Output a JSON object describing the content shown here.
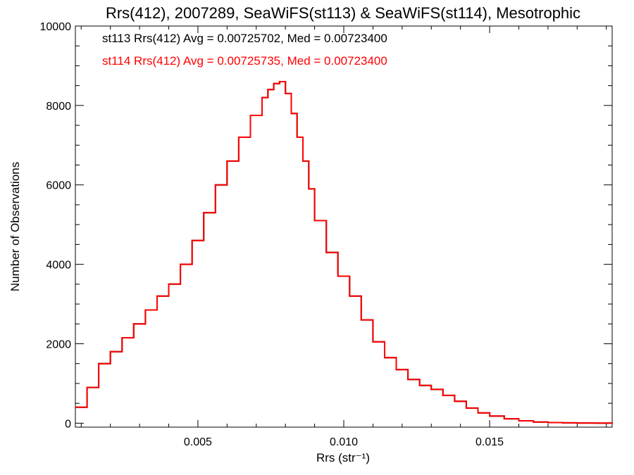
{
  "chart_data": {
    "type": "line",
    "title": "Rrs(412), 2007289, SeaWiFS(st113) & SeaWiFS(st114), Mesotrophic",
    "xlabel": "Rrs (str⁻¹)",
    "ylabel": "Number of Observations",
    "xlim": [
      0.0008,
      0.0192
    ],
    "ylim": [
      -100,
      10000
    ],
    "xticks": [
      {
        "value": 0.005,
        "label": "0.005"
      },
      {
        "value": 0.01,
        "label": "0.010"
      },
      {
        "value": 0.015,
        "label": "0.015"
      }
    ],
    "yticks": [
      {
        "value": 0,
        "label": "0"
      },
      {
        "value": 2000,
        "label": "2000"
      },
      {
        "value": 4000,
        "label": "4000"
      },
      {
        "value": 6000,
        "label": "6000"
      },
      {
        "value": 8000,
        "label": "8000"
      },
      {
        "value": 10000,
        "label": "10000"
      }
    ],
    "grid": false,
    "legend_position": "top-left",
    "annotations": [
      {
        "text": "st113 Rrs(412) Avg = 0.00725702, Med = 0.00723400",
        "color": "#000000"
      },
      {
        "text": "st114 Rrs(412) Avg = 0.00725735, Med = 0.00723400",
        "color": "#ff0000"
      }
    ],
    "series": [
      {
        "name": "st113",
        "color": "#000000",
        "x": [
          0.0008,
          0.0012,
          0.0016,
          0.002,
          0.0024,
          0.0028,
          0.0032,
          0.0036,
          0.004,
          0.0044,
          0.0048,
          0.0052,
          0.0056,
          0.006,
          0.0064,
          0.0068,
          0.0072,
          0.0074,
          0.0076,
          0.0078,
          0.008,
          0.0082,
          0.0084,
          0.0086,
          0.0088,
          0.009,
          0.0094,
          0.0098,
          0.0102,
          0.0106,
          0.011,
          0.0114,
          0.0118,
          0.0122,
          0.0126,
          0.013,
          0.0134,
          0.0138,
          0.0142,
          0.0146,
          0.015,
          0.0155,
          0.016,
          0.0165,
          0.017,
          0.0175,
          0.018,
          0.0186,
          0.0192
        ],
        "y": [
          400,
          900,
          1500,
          1800,
          2150,
          2500,
          2850,
          3200,
          3500,
          4000,
          4600,
          5300,
          6000,
          6600,
          7200,
          7750,
          8200,
          8400,
          8550,
          8600,
          8300,
          7800,
          7200,
          6600,
          5900,
          5100,
          4300,
          3700,
          3200,
          2600,
          2050,
          1650,
          1350,
          1100,
          950,
          850,
          700,
          550,
          380,
          260,
          180,
          110,
          60,
          30,
          15,
          8,
          4,
          2,
          0
        ]
      },
      {
        "name": "st114",
        "color": "#ff0000",
        "x": [
          0.0008,
          0.0012,
          0.0016,
          0.002,
          0.0024,
          0.0028,
          0.0032,
          0.0036,
          0.004,
          0.0044,
          0.0048,
          0.0052,
          0.0056,
          0.006,
          0.0064,
          0.0068,
          0.0072,
          0.0074,
          0.0076,
          0.0078,
          0.008,
          0.0082,
          0.0084,
          0.0086,
          0.0088,
          0.009,
          0.0094,
          0.0098,
          0.0102,
          0.0106,
          0.011,
          0.0114,
          0.0118,
          0.0122,
          0.0126,
          0.013,
          0.0134,
          0.0138,
          0.0142,
          0.0146,
          0.015,
          0.0155,
          0.016,
          0.0165,
          0.017,
          0.0175,
          0.018,
          0.0186,
          0.0192
        ],
        "y": [
          400,
          900,
          1500,
          1800,
          2150,
          2500,
          2850,
          3200,
          3500,
          4000,
          4600,
          5300,
          6000,
          6600,
          7200,
          7750,
          8200,
          8400,
          8550,
          8600,
          8300,
          7800,
          7200,
          6600,
          5900,
          5100,
          4300,
          3700,
          3200,
          2600,
          2050,
          1650,
          1350,
          1100,
          950,
          850,
          700,
          550,
          380,
          260,
          180,
          110,
          60,
          30,
          15,
          8,
          4,
          2,
          0
        ]
      }
    ]
  }
}
